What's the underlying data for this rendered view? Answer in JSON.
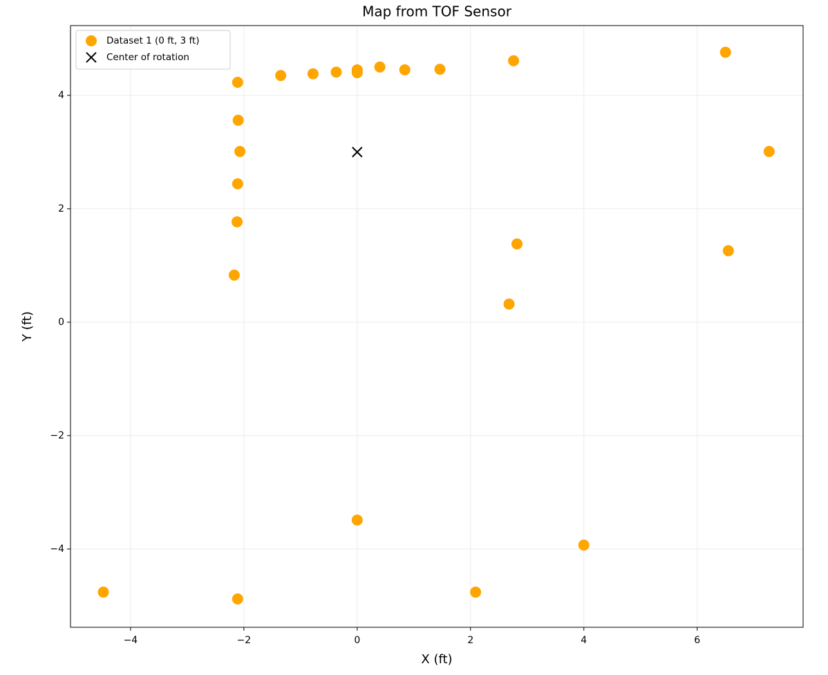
{
  "chart_data": {
    "type": "scatter",
    "title": "Map from TOF Sensor",
    "xlabel": "X (ft)",
    "ylabel": "Y (ft)",
    "xlim": [
      -5.06,
      7.87
    ],
    "ylim": [
      -5.38,
      5.23
    ],
    "xticks": [
      {
        "value": -4,
        "label": "−4"
      },
      {
        "value": -2,
        "label": "−2"
      },
      0,
      2,
      4,
      6
    ],
    "yticks": [
      {
        "value": -4,
        "label": "−4"
      },
      {
        "value": -2,
        "label": "−2"
      },
      0,
      2,
      4
    ],
    "grid": true,
    "legend": "upper left",
    "series": [
      {
        "name": "Dataset 1 (0 ft, 3 ft)",
        "color": "#ffa500",
        "marker": "o",
        "x": [
          -2.11,
          -1.35,
          -0.78,
          -0.37,
          0,
          0,
          0.4,
          0.84,
          1.46,
          2.76,
          6.5,
          -2.1,
          -2.07,
          7.27,
          -2.11,
          -2.12,
          2.82,
          6.55,
          -2.17,
          2.68,
          0,
          4.0,
          -4.48,
          -2.11,
          2.09
        ],
        "values": [
          4.23,
          4.35,
          4.38,
          4.41,
          4.45,
          4.4,
          4.5,
          4.45,
          4.46,
          4.61,
          4.76,
          3.56,
          3.01,
          3.01,
          2.44,
          1.77,
          1.38,
          1.26,
          0.83,
          0.32,
          -3.49,
          -3.93,
          -4.76,
          -4.88,
          -4.76
        ]
      },
      {
        "name": "Center of rotation",
        "color": "#000000",
        "marker": "x",
        "x": [
          0
        ],
        "values": [
          3
        ]
      }
    ]
  }
}
